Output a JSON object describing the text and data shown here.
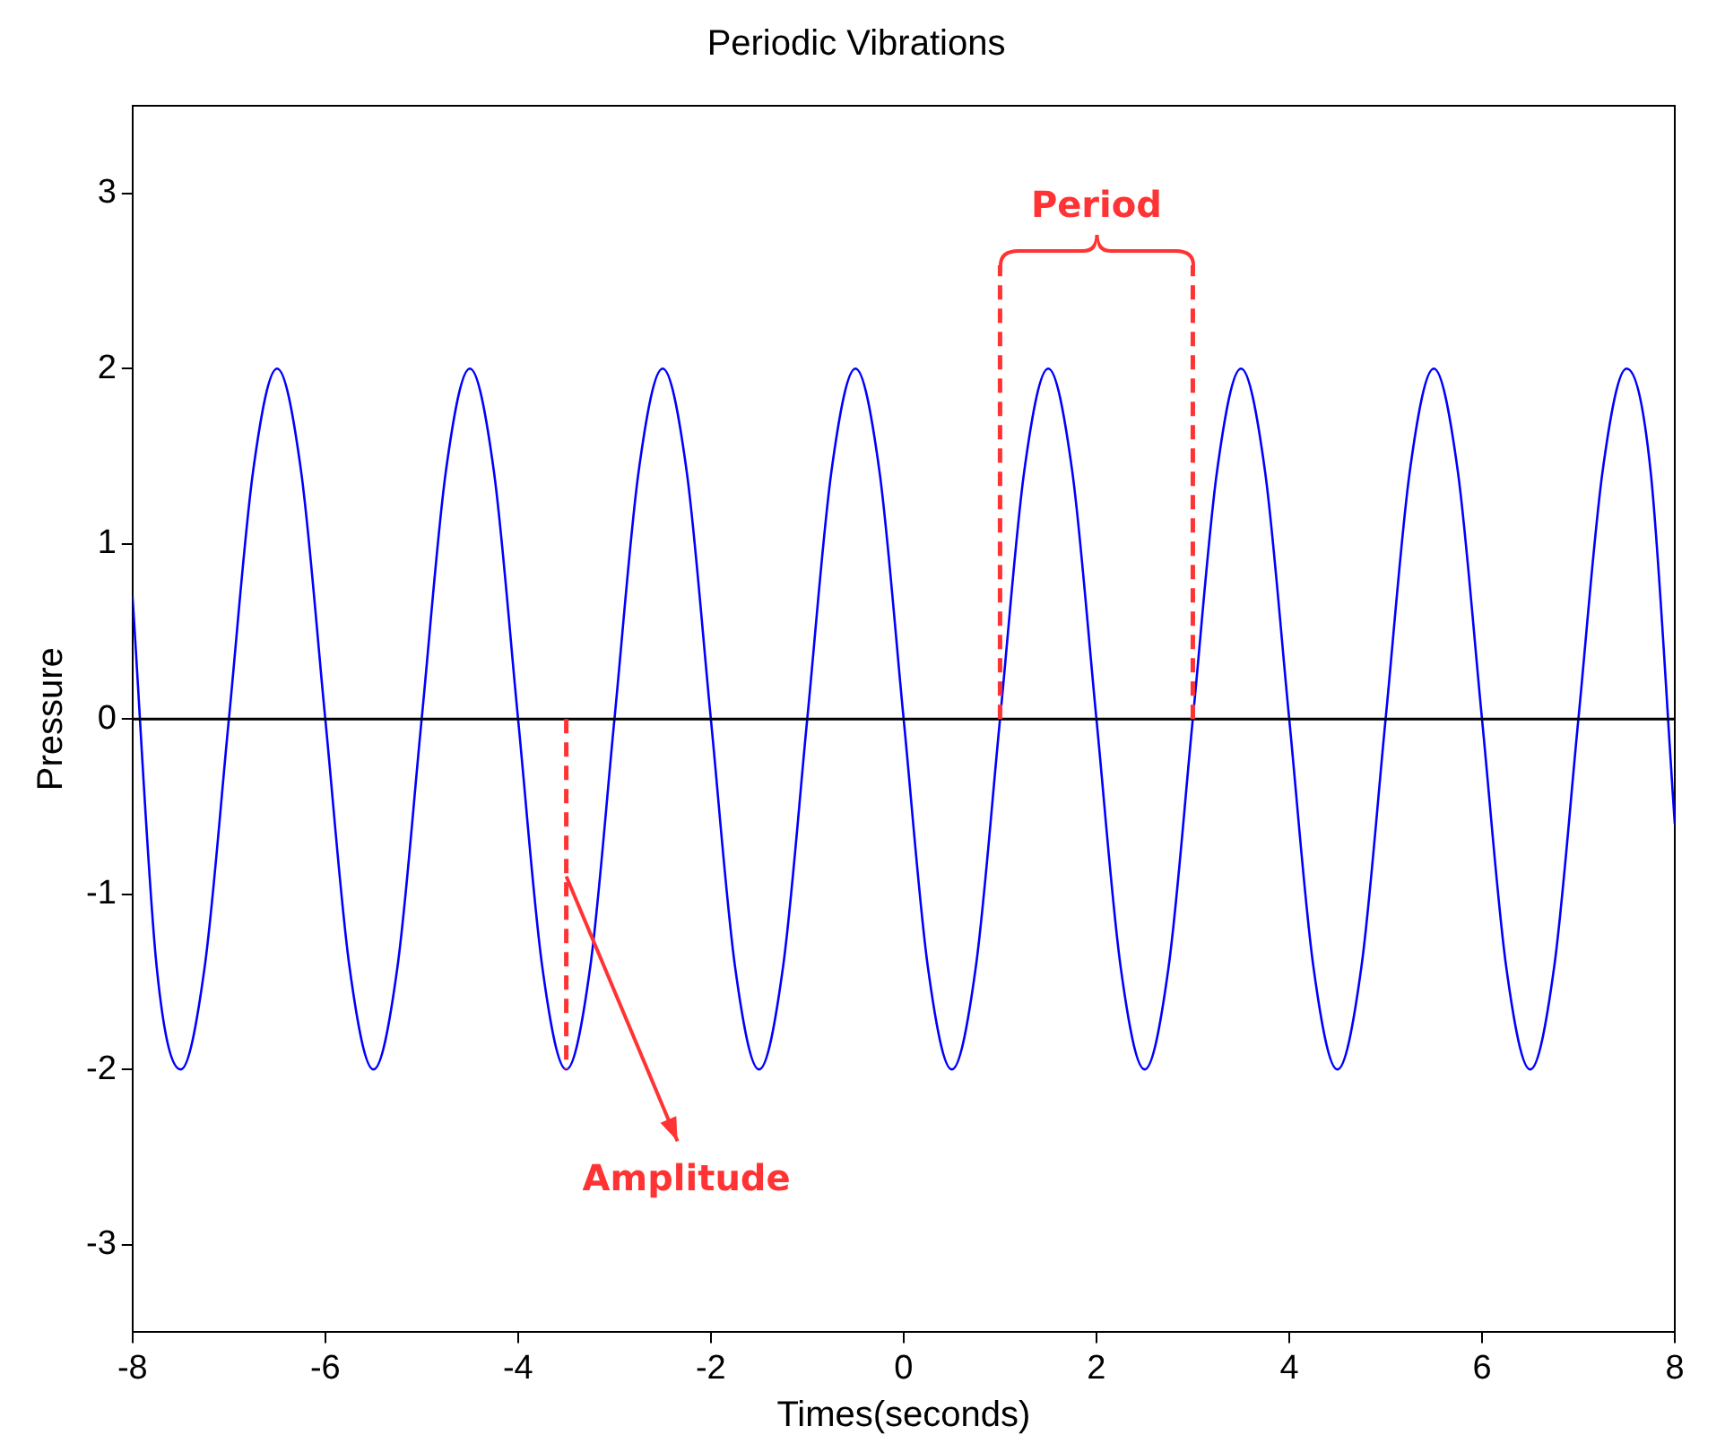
{
  "chart_data": {
    "type": "line",
    "title": "Periodic Vibrations",
    "xlabel": "Times(seconds)",
    "ylabel": "Pressure",
    "x": [
      -8,
      -7.75,
      -7.5,
      -7.25,
      -7,
      -6.75,
      -6.5,
      -6.25,
      -6,
      -5.75,
      -5.5,
      -5.25,
      -5,
      -4.75,
      -4.5,
      -4.25,
      -4,
      -3.75,
      -3.5,
      -3.25,
      -3,
      -2.75,
      -2.5,
      -2.25,
      -2,
      -1.75,
      -1.5,
      -1.25,
      -1,
      -0.75,
      -0.5,
      -0.25,
      0,
      0.25,
      0.5,
      0.75,
      1,
      1.25,
      1.5,
      1.75,
      2,
      2.25,
      2.5,
      2.75,
      3,
      3.25,
      3.5,
      3.75,
      4,
      4.25,
      4.5,
      4.75,
      5,
      5.25,
      5.5,
      5.75,
      6,
      6.25,
      6.5,
      6.75,
      7,
      7.25,
      7.5,
      7.75,
      8
    ],
    "series": [
      {
        "color": "#0000ff",
        "values": [
          0.7,
          -1.41,
          -2,
          -1.41,
          0,
          1.41,
          2,
          1.41,
          0,
          -1.41,
          -2,
          -1.41,
          0,
          1.41,
          2,
          1.41,
          0,
          -1.41,
          -2,
          -1.41,
          0,
          1.41,
          2,
          1.41,
          0,
          -1.41,
          -2,
          -1.41,
          0,
          1.41,
          2,
          1.41,
          0,
          -1.41,
          -2,
          -1.41,
          0,
          1.41,
          2,
          1.41,
          0,
          -1.41,
          -2,
          -1.41,
          0,
          1.41,
          2,
          1.41,
          0,
          -1.41,
          -2,
          -1.41,
          0,
          1.41,
          2,
          1.41,
          0,
          -1.41,
          -2,
          -1.41,
          0,
          1.41,
          2,
          1.41,
          -0.6
        ]
      }
    ],
    "xlim": [
      -8,
      8
    ],
    "xticks": [
      -8,
      -6,
      -4,
      -2,
      0,
      2,
      4,
      6,
      8
    ],
    "ylim": [
      -3.5,
      3.5
    ],
    "yticks": [
      -3,
      -2,
      -1,
      0,
      1,
      2,
      3
    ],
    "grid": false,
    "legend": false,
    "marker": "none",
    "line_style": "solid",
    "ref_lines": [
      {
        "axis": "y",
        "value": 0,
        "color": "#000000"
      },
      {
        "axis": "x",
        "value": 1,
        "color": "#ff3333",
        "line_style": "dashed"
      },
      {
        "axis": "x",
        "value": 3,
        "color": "#ff3333",
        "line_style": "dashed"
      },
      {
        "axis": "x",
        "value": -3.5,
        "color": "#ff3333",
        "line_style": "dashed"
      }
    ],
    "annotations": [
      "Period",
      {
        "text": "Amplitude",
        "x": -3.5,
        "y": -2
      }
    ]
  }
}
